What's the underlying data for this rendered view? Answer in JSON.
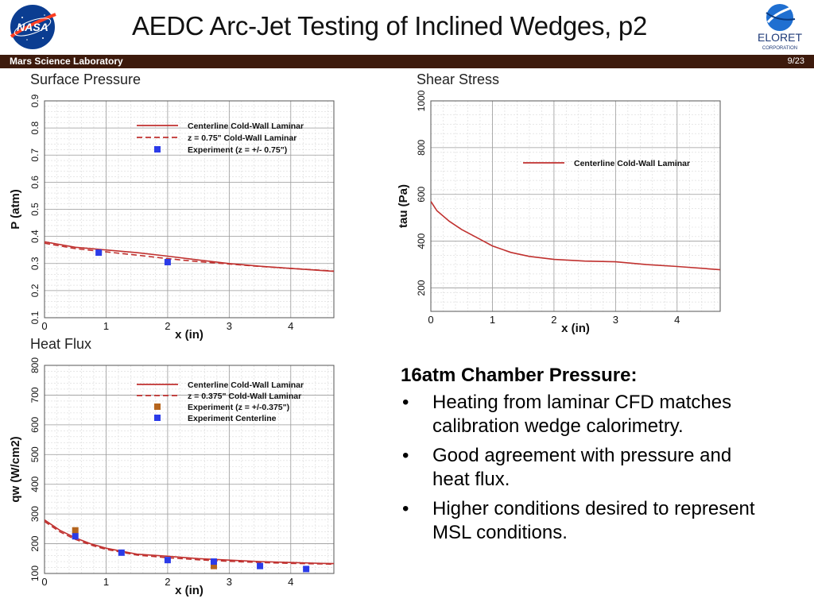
{
  "slide": {
    "title": "AEDC Arc-Jet Testing of Inclined Wedges, p2",
    "footer_left": "Mars Science Laboratory",
    "page": "9/23",
    "nasa_logo_text": "NASA",
    "eloret_logo_text": "ELORET",
    "eloret_logo_subtext": "CORPORATION"
  },
  "colors": {
    "band": "#3d1a0c",
    "cfd": "#c0312f",
    "exp_blue": "#2b3be8",
    "exp_orange": "#b5651d"
  },
  "text_block": {
    "heading": "16atm Chamber Pressure:",
    "bullets": [
      "Heating from laminar CFD matches calibration wedge calorimetry.",
      "Good agreement with pressure and heat flux.",
      "Higher conditions desired to represent MSL conditions."
    ]
  },
  "chart_data": [
    {
      "id": "pressure",
      "type": "line",
      "title": "Surface Pressure",
      "xlabel": "x (in)",
      "ylabel": "P (atm)",
      "xlim": [
        0,
        4.7
      ],
      "ylim": [
        0.1,
        0.9
      ],
      "xticks": [
        0,
        1,
        2,
        3,
        4
      ],
      "yticks": [
        0.1,
        0.2,
        0.3,
        0.4,
        0.5,
        0.6,
        0.7,
        0.8,
        0.9
      ],
      "grid": true,
      "legend_position": "top-right",
      "series": [
        {
          "name": "Centerline Cold-Wall Laminar",
          "style": "solid",
          "color": "#c0312f",
          "x": [
            0,
            0.5,
            1.0,
            1.5,
            2.0,
            2.5,
            3.0,
            3.5,
            4.0,
            4.5,
            4.7
          ],
          "y": [
            0.38,
            0.36,
            0.35,
            0.34,
            0.327,
            0.313,
            0.3,
            0.29,
            0.282,
            0.274,
            0.271
          ]
        },
        {
          "name": "z = 0.75\" Cold-Wall Laminar",
          "style": "dashed",
          "color": "#c0312f",
          "x": [
            0,
            0.5,
            1.0,
            1.5,
            2.0,
            2.5,
            3.0,
            3.5,
            4.0,
            4.5,
            4.7
          ],
          "y": [
            0.375,
            0.355,
            0.343,
            0.331,
            0.318,
            0.307,
            0.298,
            0.289,
            0.282,
            0.275,
            0.272
          ]
        },
        {
          "name": "Experiment (z = +/- 0.75\")",
          "style": "square",
          "color": "#2b3be8",
          "x": [
            0.88,
            2.0
          ],
          "y": [
            0.34,
            0.305
          ]
        }
      ]
    },
    {
      "id": "shear",
      "type": "line",
      "title": "Shear Stress",
      "xlabel": "x (in)",
      "ylabel": "tau (Pa)",
      "xlim": [
        0,
        4.7
      ],
      "ylim": [
        100,
        1000
      ],
      "xticks": [
        0,
        1,
        2,
        3,
        4
      ],
      "yticks": [
        200,
        400,
        600,
        800,
        1000
      ],
      "grid": true,
      "legend_position": "top-right",
      "series": [
        {
          "name": "Centerline Cold-Wall Laminar",
          "style": "solid",
          "color": "#c0312f",
          "x": [
            0,
            0.1,
            0.3,
            0.5,
            0.8,
            1.0,
            1.3,
            1.6,
            2.0,
            2.5,
            3.0,
            3.5,
            4.0,
            4.5,
            4.7
          ],
          "y": [
            570,
            530,
            485,
            450,
            408,
            380,
            352,
            335,
            322,
            315,
            312,
            300,
            292,
            282,
            278
          ]
        }
      ]
    },
    {
      "id": "heatflux",
      "type": "line",
      "title": "Heat Flux",
      "xlabel": "x (in)",
      "ylabel": "qw (W/cm2)",
      "xlim": [
        0,
        4.7
      ],
      "ylim": [
        100,
        800
      ],
      "xticks": [
        0,
        1,
        2,
        3,
        4
      ],
      "yticks": [
        100,
        200,
        300,
        400,
        500,
        600,
        700,
        800
      ],
      "grid": true,
      "legend_position": "top-right",
      "series": [
        {
          "name": "Centerline Cold-Wall Laminar",
          "style": "solid",
          "color": "#c0312f",
          "x": [
            0,
            0.25,
            0.5,
            0.75,
            1.0,
            1.5,
            2.0,
            2.5,
            3.0,
            3.5,
            4.0,
            4.5,
            4.7
          ],
          "y": [
            280,
            245,
            220,
            200,
            185,
            165,
            158,
            150,
            145,
            140,
            137,
            134,
            133
          ]
        },
        {
          "name": "z = 0.375\" Cold-Wall Laminar",
          "style": "dashed",
          "color": "#c0312f",
          "x": [
            0,
            0.25,
            0.5,
            0.75,
            1.0,
            1.5,
            2.0,
            2.5,
            3.0,
            3.5,
            4.0,
            4.5,
            4.7
          ],
          "y": [
            275,
            240,
            215,
            196,
            181,
            162,
            153,
            146,
            141,
            137,
            134,
            132,
            131
          ]
        },
        {
          "name": "Experiment (z = +/-0.375\")",
          "style": "square",
          "color": "#b5651d",
          "x": [
            0.5,
            2.75
          ],
          "y": [
            245,
            125
          ]
        },
        {
          "name": "Experiment Centerline",
          "style": "square",
          "color": "#2b3be8",
          "x": [
            0.5,
            1.25,
            2.0,
            2.75,
            3.5,
            4.25
          ],
          "y": [
            225,
            170,
            145,
            140,
            125,
            115
          ]
        }
      ]
    }
  ]
}
